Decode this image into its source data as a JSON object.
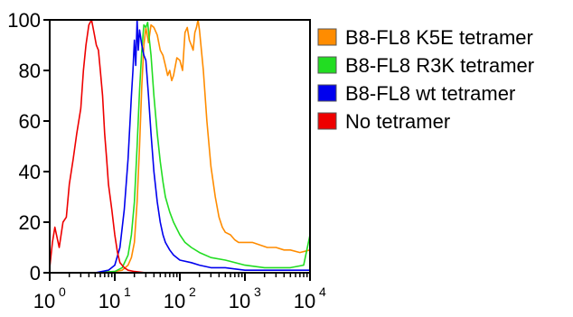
{
  "chart_data": {
    "type": "line",
    "title": "",
    "xlabel": "",
    "ylabel": "",
    "xscale": "log",
    "xlim": [
      1,
      10000
    ],
    "ylim": [
      0,
      100
    ],
    "grid": false,
    "legend_position": "right",
    "yticks": [
      0,
      20,
      40,
      60,
      80,
      100
    ],
    "ytick_labels": [
      "0",
      "20",
      "40",
      "60",
      "80",
      "100"
    ],
    "xticks": [
      1,
      10,
      100,
      1000,
      10000
    ],
    "xtick_labels": [
      {
        "base": "10",
        "exp": "0"
      },
      {
        "base": "10",
        "exp": "1"
      },
      {
        "base": "10",
        "exp": "2"
      },
      {
        "base": "10",
        "exp": "3"
      },
      {
        "base": "10",
        "exp": "4"
      }
    ],
    "series": [
      {
        "name": "B8-FL8 K5E tetramer",
        "color": "#FF8C00",
        "x": [
          1,
          5,
          10,
          13,
          16,
          18,
          20,
          22,
          24,
          26,
          28,
          30,
          33,
          36,
          40,
          45,
          50,
          55,
          60,
          65,
          70,
          75,
          80,
          90,
          100,
          110,
          120,
          130,
          140,
          150,
          160,
          170,
          180,
          190,
          200,
          230,
          260,
          300,
          350,
          400,
          450,
          500,
          600,
          700,
          800,
          1000,
          1300,
          1700,
          2200,
          3000,
          4000,
          5000,
          7000,
          10000
        ],
        "y": [
          0,
          0,
          0.5,
          1,
          3,
          6,
          12,
          28,
          50,
          74,
          90,
          97,
          91,
          98,
          97,
          94,
          88,
          86,
          82,
          78,
          80,
          76,
          78,
          85,
          84,
          80,
          95,
          97,
          92,
          90,
          88,
          95,
          97,
          100,
          96,
          80,
          60,
          42,
          30,
          22,
          18,
          16,
          15,
          13,
          12,
          12,
          12,
          11,
          10,
          10,
          9,
          9,
          8,
          9
        ]
      },
      {
        "name": "B8-FL8 R3K tetramer",
        "color": "#22DD22",
        "x": [
          1,
          5,
          10,
          13,
          16,
          18,
          20,
          22,
          24,
          26,
          28,
          30,
          32,
          34,
          36,
          40,
          45,
          50,
          55,
          60,
          70,
          80,
          100,
          120,
          150,
          200,
          300,
          500,
          1000,
          2000,
          5000,
          8000,
          10000
        ],
        "y": [
          0,
          0,
          0.5,
          2,
          7,
          15,
          28,
          50,
          72,
          88,
          98,
          97,
          99,
          92,
          86,
          70,
          55,
          44,
          36,
          30,
          24,
          20,
          15,
          12,
          10,
          8,
          6,
          5,
          3,
          2,
          2,
          3,
          15
        ]
      },
      {
        "name": "B8-FL8 wt tetramer",
        "color": "#0000EE",
        "x": [
          1,
          5,
          8,
          10,
          12,
          14,
          16,
          18,
          19,
          20,
          21,
          22,
          23,
          24,
          26,
          28,
          30,
          33,
          36,
          40,
          45,
          50,
          55,
          60,
          70,
          80,
          100,
          150,
          200,
          300,
          500,
          1000,
          3000,
          10000
        ],
        "y": [
          0,
          0,
          1,
          3,
          10,
          25,
          45,
          70,
          80,
          92,
          82,
          100,
          88,
          96,
          90,
          86,
          84,
          70,
          55,
          40,
          28,
          20,
          15,
          12,
          9,
          7,
          5,
          4,
          3,
          2,
          2,
          1,
          1,
          1
        ]
      },
      {
        "name": "No tetramer",
        "color": "#EE0000",
        "x": [
          1,
          1.1,
          1.2,
          1.4,
          1.6,
          1.8,
          2,
          2.3,
          2.6,
          3,
          3.3,
          3.6,
          4,
          4.4,
          4.8,
          5.2,
          5.6,
          6,
          6.5,
          7,
          7.5,
          8,
          9,
          10,
          11,
          12,
          14,
          16,
          20,
          30,
          100,
          10000
        ],
        "y": [
          2,
          12,
          18,
          10,
          20,
          22,
          35,
          45,
          55,
          65,
          80,
          90,
          98,
          100,
          95,
          90,
          88,
          80,
          70,
          55,
          45,
          35,
          25,
          15,
          8,
          4,
          2,
          1,
          0.5,
          0,
          0,
          0
        ]
      }
    ]
  }
}
